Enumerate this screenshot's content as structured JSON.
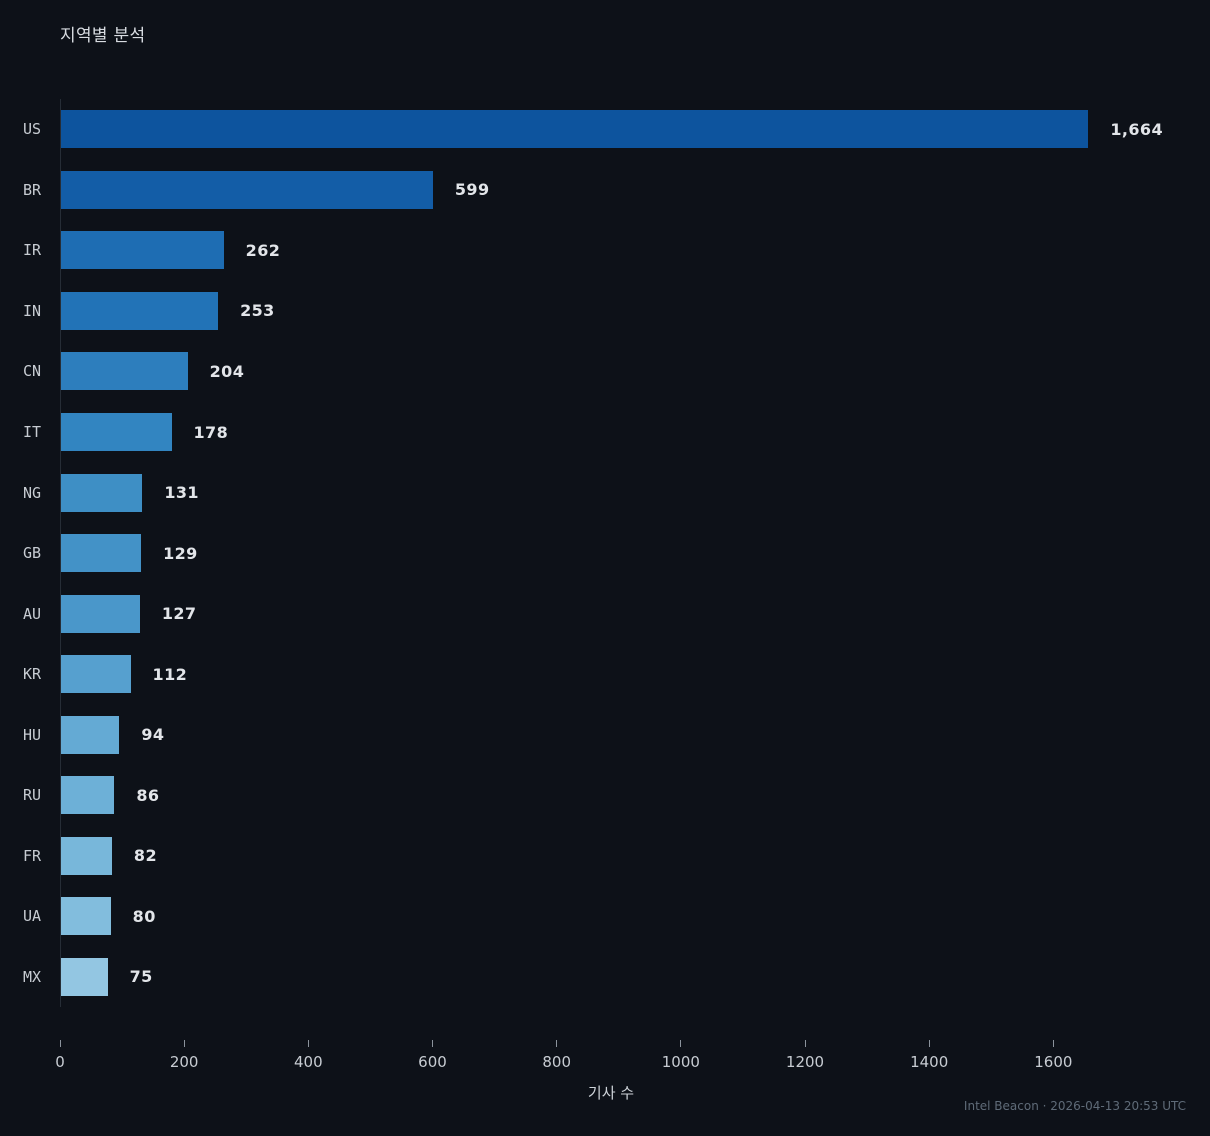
{
  "title": "지역별 분석",
  "footer": "Intel Beacon · 2026-04-13 20:53 UTC",
  "chart_data": {
    "type": "bar",
    "orientation": "horizontal",
    "title": "지역별 분석",
    "xlabel": "기사 수",
    "categories": [
      "US",
      "BR",
      "IR",
      "IN",
      "CN",
      "IT",
      "NG",
      "GB",
      "AU",
      "KR",
      "HU",
      "RU",
      "FR",
      "UA",
      "MX"
    ],
    "values": [
      1664,
      599,
      262,
      253,
      204,
      178,
      131,
      129,
      127,
      112,
      94,
      86,
      82,
      80,
      75
    ],
    "value_labels": [
      "1,664",
      "599",
      "262",
      "253",
      "204",
      "178",
      "131",
      "129",
      "127",
      "112",
      "94",
      "86",
      "82",
      "80",
      "75"
    ],
    "bar_colors": [
      "#0d549e",
      "#135da7",
      "#1e6db3",
      "#2273b7",
      "#2d7ebd",
      "#3285c1",
      "#3e8fc5",
      "#4392c7",
      "#4a97ca",
      "#56a0cf",
      "#64aad4",
      "#6db0d7",
      "#78b7da",
      "#82bddd",
      "#93c6e2"
    ],
    "x_ticks": [
      0,
      200,
      400,
      600,
      800,
      1000,
      1200,
      1400,
      1600
    ],
    "xlim": [
      0,
      1775
    ],
    "grid": false,
    "legend": null,
    "background": "#0d1118"
  }
}
